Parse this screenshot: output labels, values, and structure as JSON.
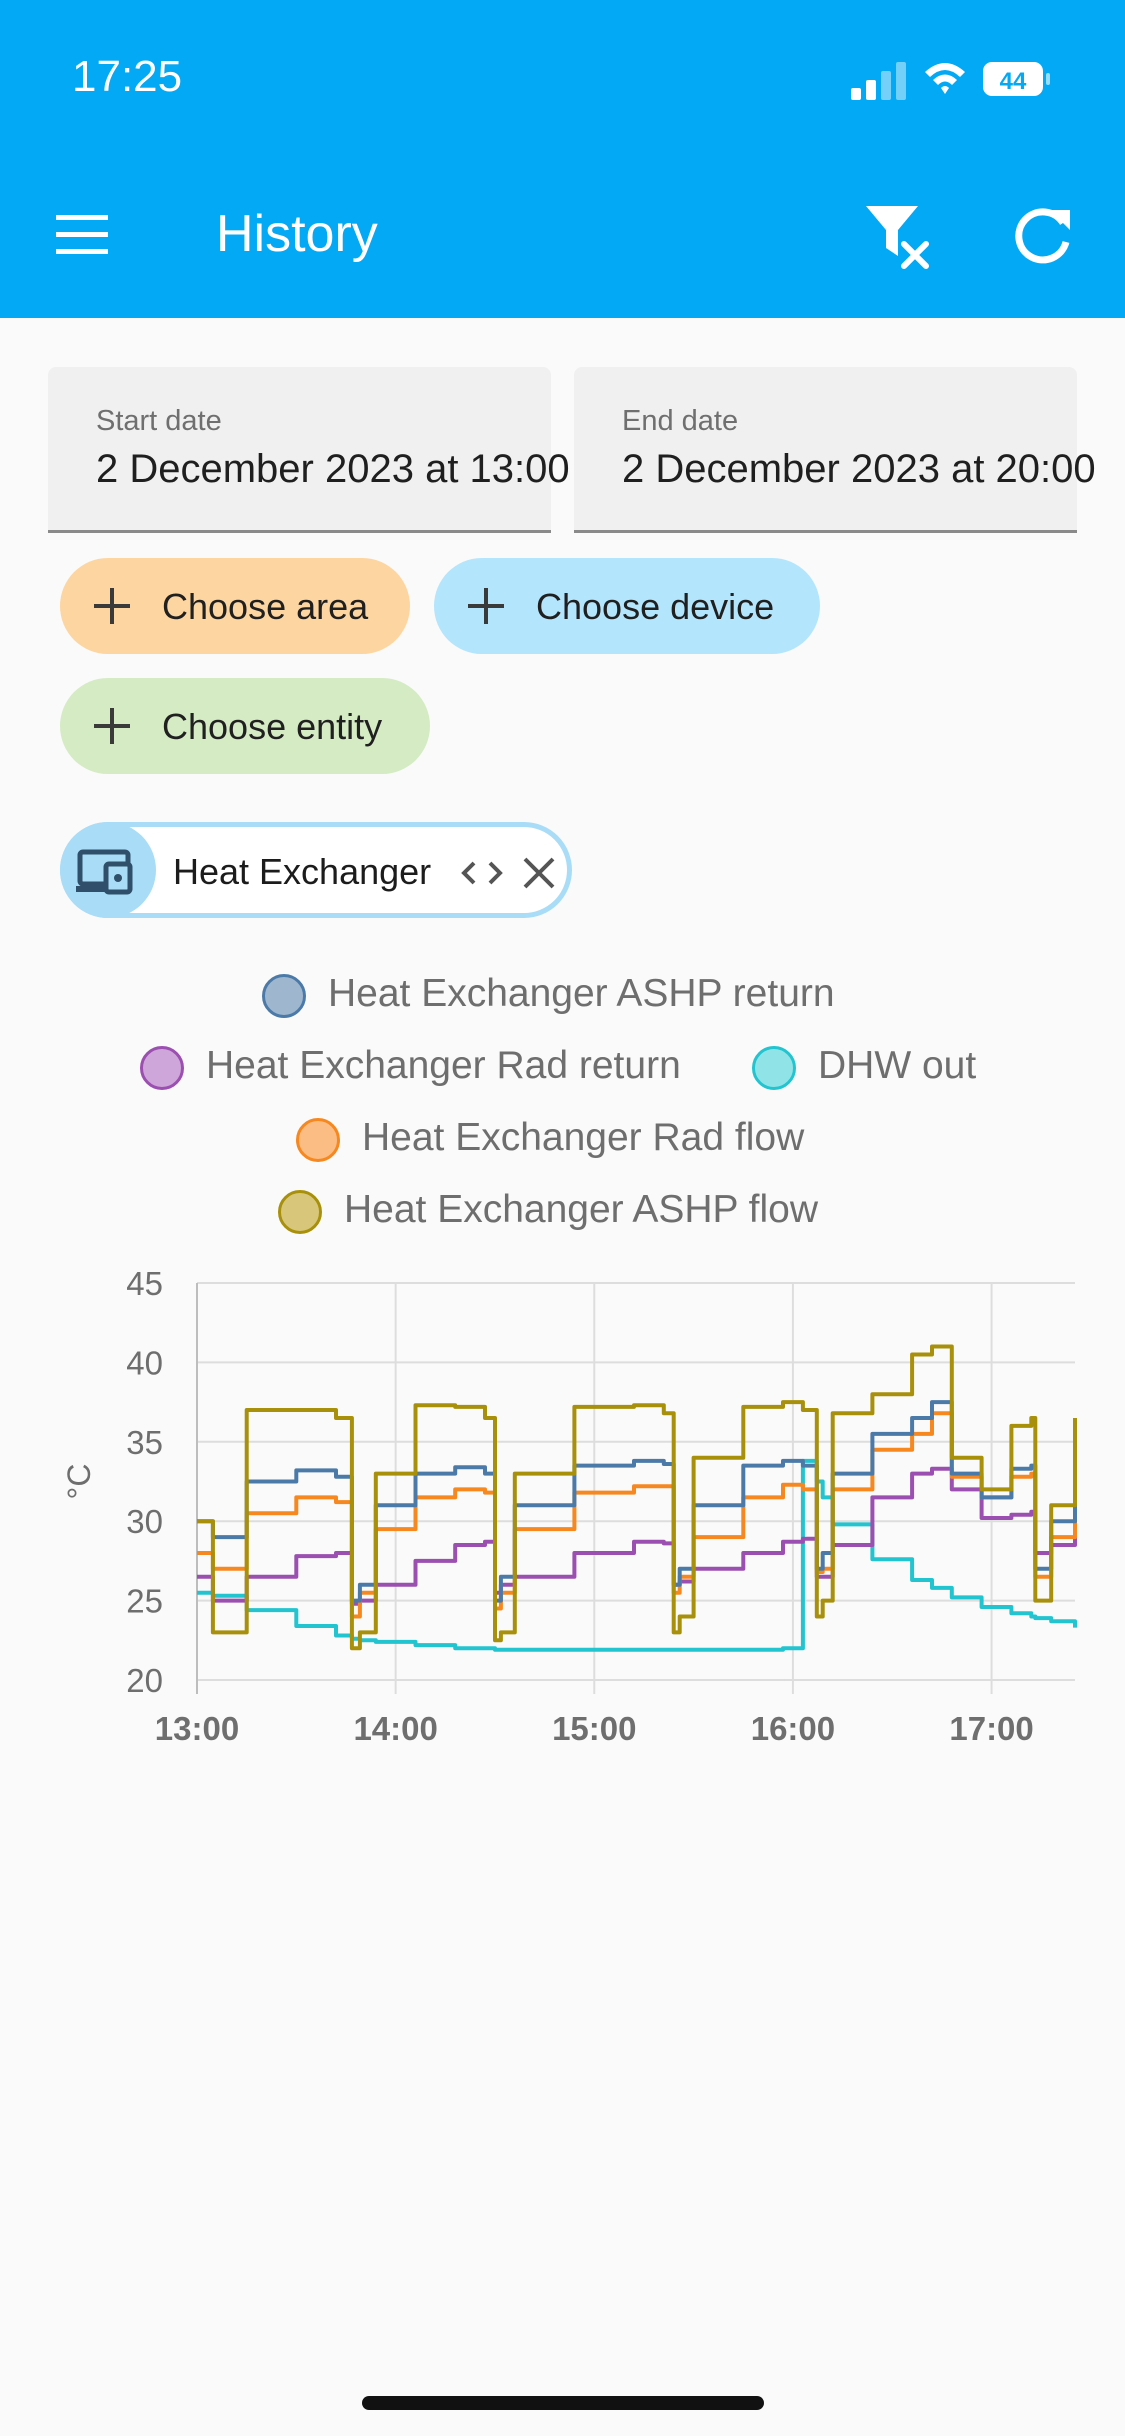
{
  "status_bar": {
    "time": "17:25",
    "battery": "44"
  },
  "app_bar": {
    "title": "History",
    "icons": [
      "menu-icon",
      "filter-remove-icon",
      "refresh-icon"
    ],
    "color": "#03a9f4"
  },
  "date_range": {
    "start": {
      "label": "Start date",
      "value": "2 December 2023 at 13:00"
    },
    "end": {
      "label": "End date",
      "value": "2 December 2023 at 20:00"
    }
  },
  "target_picker": {
    "area": {
      "label": "Choose area",
      "color": "#fdd5a0"
    },
    "device": {
      "label": "Choose device",
      "color": "#b3e5fc"
    },
    "entity": {
      "label": "Choose entity",
      "color": "#d4ebc4"
    }
  },
  "selected_targets": [
    {
      "label": "Heat Exchanger",
      "icon": "devices-icon"
    }
  ],
  "chart_data": {
    "type": "line",
    "ylabel": "°C",
    "ylim": [
      20,
      45
    ],
    "yticks": [
      "45",
      "40",
      "35",
      "30",
      "25",
      "20"
    ],
    "xticks": [
      "13:00",
      "14:00",
      "15:00",
      "16:00",
      "17:00"
    ],
    "x_hours": [
      13.0,
      13.08,
      13.25,
      13.5,
      13.7,
      13.78,
      13.82,
      13.9,
      14.1,
      14.3,
      14.45,
      14.5,
      14.53,
      14.6,
      14.9,
      15.2,
      15.35,
      15.4,
      15.43,
      15.5,
      15.75,
      15.95,
      16.05,
      16.12,
      16.15,
      16.2,
      16.4,
      16.6,
      16.7,
      16.8,
      16.95,
      17.1,
      17.2,
      17.22,
      17.3,
      17.42
    ],
    "legend": [
      {
        "name": "Heat Exchanger ASHP return",
        "color": "#4c7aa8",
        "fill": "#9fb6cf"
      },
      {
        "name": "Heat Exchanger Rad return",
        "color": "#9b4fb0",
        "fill": "#cfa6da"
      },
      {
        "name": "DHW out",
        "color": "#21c4cf",
        "fill": "#90e4e8"
      },
      {
        "name": "Heat Exchanger Rad flow",
        "color": "#f6881f",
        "fill": "#fbbd83"
      },
      {
        "name": "Heat Exchanger ASHP flow",
        "color": "#a8900a",
        "fill": "#d8c77a"
      }
    ],
    "series": [
      {
        "name": "Heat Exchanger ASHP return",
        "color": "#4c7aa8",
        "values": [
          30,
          29,
          32.5,
          33.2,
          32.8,
          25,
          26,
          31,
          33,
          33.4,
          33,
          25,
          26.5,
          31,
          33.5,
          33.8,
          33.6,
          26,
          27,
          31,
          33.5,
          33.8,
          33.5,
          27,
          28,
          33,
          35.5,
          36.5,
          37.5,
          33,
          31.5,
          33.3,
          33.5,
          27,
          30,
          34.5
        ]
      },
      {
        "name": "Heat Exchanger Rad return",
        "color": "#9b4fb0",
        "values": [
          26.5,
          25,
          26.5,
          27.8,
          28,
          24.8,
          25,
          26,
          27.5,
          28.5,
          28.7,
          25.5,
          26,
          26.5,
          28,
          28.7,
          28.6,
          26,
          26.2,
          27,
          28,
          28.7,
          28.9,
          26.5,
          26.5,
          28.5,
          31.5,
          33,
          33.3,
          32,
          30.2,
          30.4,
          30.6,
          28,
          28.5,
          30
        ]
      },
      {
        "name": "DHW out",
        "color": "#21c4cf",
        "values": [
          25.5,
          25.3,
          24.4,
          23.4,
          22.8,
          22.6,
          22.5,
          22.4,
          22.2,
          22.0,
          22.0,
          21.9,
          21.9,
          21.9,
          21.9,
          21.9,
          21.9,
          21.9,
          21.9,
          21.9,
          21.9,
          22.0,
          33.8,
          32.5,
          31.5,
          29.8,
          27.6,
          26.3,
          25.8,
          25.2,
          24.6,
          24.2,
          24.0,
          23.9,
          23.7,
          23.3
        ]
      },
      {
        "name": "Heat Exchanger Rad flow",
        "color": "#f6881f",
        "values": [
          28,
          27,
          30.5,
          31.5,
          31.2,
          24,
          25.5,
          29.5,
          31.5,
          32,
          31.8,
          24.5,
          25.5,
          29.5,
          31.8,
          32.2,
          32.2,
          25.5,
          26.5,
          29,
          31.5,
          32.3,
          32,
          26.8,
          27,
          32,
          34.5,
          35.5,
          36.8,
          32.8,
          31.5,
          32.8,
          33,
          26.5,
          29,
          33.5
        ]
      },
      {
        "name": "Heat Exchanger ASHP flow",
        "color": "#a8900a",
        "values": [
          30,
          23,
          37,
          37,
          36.5,
          22,
          23,
          33,
          37.3,
          37.2,
          36.5,
          22.5,
          23,
          33,
          37.2,
          37.3,
          36.8,
          23,
          24,
          34,
          37.2,
          37.5,
          37,
          24,
          25,
          36.8,
          38,
          40.5,
          41,
          34,
          32,
          36,
          36.5,
          25,
          31,
          36.5
        ]
      }
    ]
  }
}
